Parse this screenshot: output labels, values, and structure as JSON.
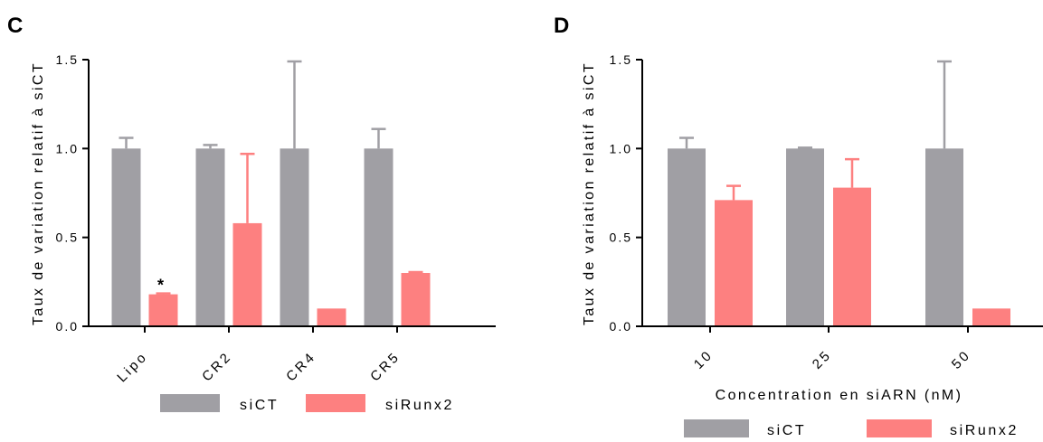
{
  "colors": {
    "siCT": "#a09fa4",
    "siRunx2": "#fd8080",
    "axis": "#000000"
  },
  "chart_data": [
    {
      "panel": "C",
      "type": "bar",
      "categories": [
        "Lipo",
        "CR2",
        "CR4",
        "CR5"
      ],
      "ylabel": "Taux de variation relatif à siCT",
      "xlabel": "",
      "ylim": [
        0,
        1.5
      ],
      "yticks": [
        "0.0",
        "0.5",
        "1.0",
        "1.5"
      ],
      "yticks_values": [
        0,
        0.5,
        1.0,
        1.5
      ],
      "series": [
        {
          "name": "siCT",
          "values": [
            1.0,
            1.0,
            1.0,
            1.0
          ],
          "error": [
            0.06,
            0.02,
            0.49,
            0.11
          ]
        },
        {
          "name": "siRunx2",
          "values": [
            0.18,
            0.58,
            0.1,
            0.3
          ],
          "error": [
            0.005,
            0.39,
            0.0,
            0.005
          ]
        }
      ],
      "annotations": [
        {
          "text": "*",
          "series": "siRunx2",
          "category": "Lipo"
        }
      ],
      "legend": {
        "position": "bottom",
        "items": [
          "siCT",
          "siRunx2"
        ]
      }
    },
    {
      "panel": "D",
      "type": "bar",
      "categories": [
        "10",
        "25",
        "50"
      ],
      "ylabel": "Taux de variation relatif à siCT",
      "xlabel": "Concentration en siARN (nM)",
      "ylim": [
        0,
        1.5
      ],
      "yticks": [
        "0.0",
        "0.5",
        "1.0",
        "1.5"
      ],
      "yticks_values": [
        0,
        0.5,
        1.0,
        1.5
      ],
      "series": [
        {
          "name": "siCT",
          "values": [
            1.0,
            1.0,
            1.0
          ],
          "error": [
            0.06,
            0.005,
            0.49
          ]
        },
        {
          "name": "siRunx2",
          "values": [
            0.71,
            0.78,
            0.1
          ],
          "error": [
            0.08,
            0.16,
            0.0
          ]
        }
      ],
      "annotations": [],
      "legend": {
        "position": "bottom",
        "items": [
          "siCT",
          "siRunx2"
        ]
      }
    }
  ]
}
